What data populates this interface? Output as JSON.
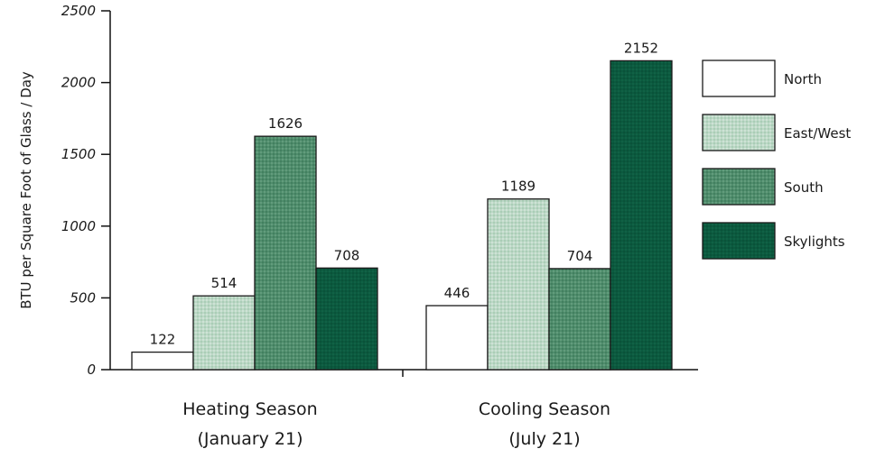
{
  "chart_data": {
    "type": "bar",
    "ylabel": "BTU per Square Foot of Glass / Day",
    "ylim": [
      0,
      2500
    ],
    "yticks": [
      0,
      500,
      1000,
      1500,
      2000,
      2500
    ],
    "ytick_labels": [
      "0",
      "500",
      "1000",
      "1500",
      "2000",
      "2500"
    ],
    "grid": false,
    "legend_position": "right",
    "categories": [
      {
        "line1": "Heating Season",
        "line2": "(January 21)"
      },
      {
        "line1": "Cooling Season",
        "line2": "(July 21)"
      }
    ],
    "series": [
      {
        "name": "North",
        "values": [
          122,
          446
        ],
        "color": "#ffffff",
        "pattern": "none"
      },
      {
        "name": "East/West",
        "values": [
          514,
          1189
        ],
        "color": "#bcd8c6",
        "pattern": "light-dots"
      },
      {
        "name": "South",
        "values": [
          1626,
          704
        ],
        "color": "#4f8d6c",
        "pattern": "dark-dots"
      },
      {
        "name": "Skylights",
        "values": [
          708,
          2152
        ],
        "color": "#0b5a3f",
        "pattern": "dense-dots"
      }
    ]
  }
}
